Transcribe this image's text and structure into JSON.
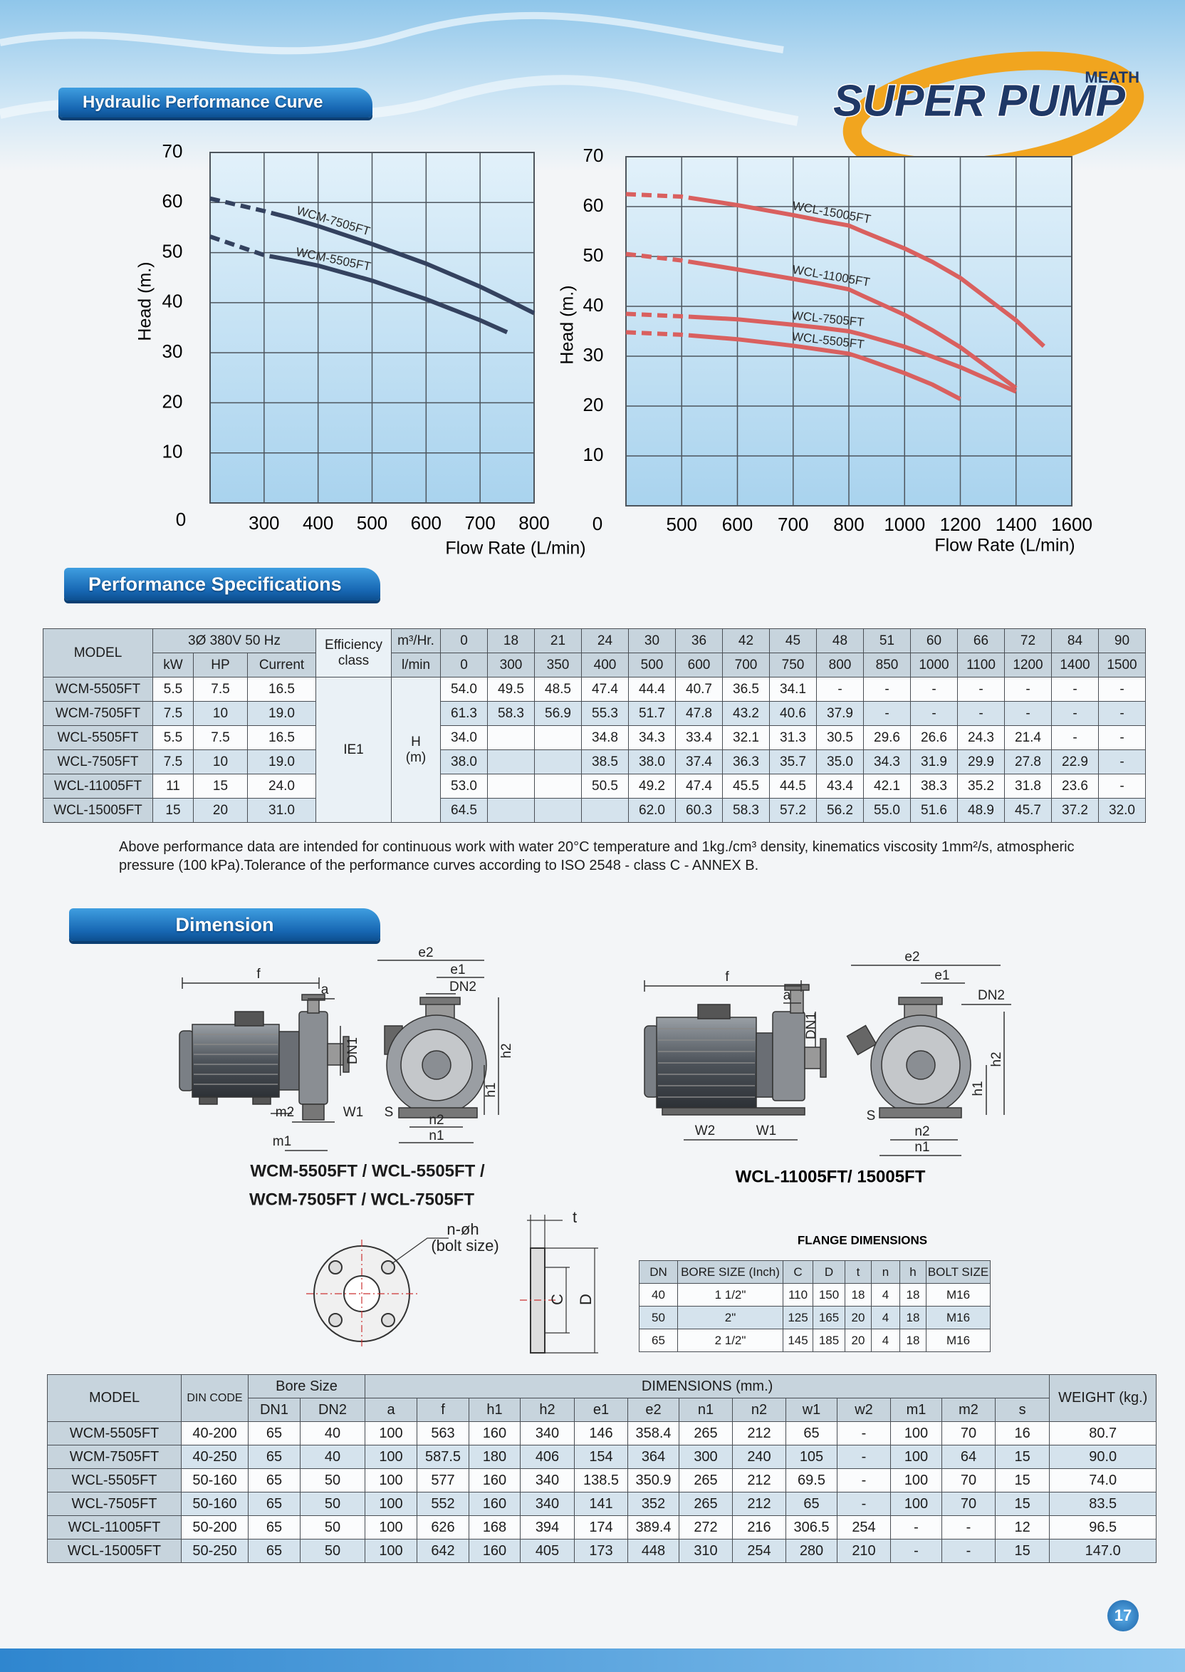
{
  "header": {
    "section_title": "Hydraulic Performance Curve",
    "logo_small": "MEATH",
    "logo": "SUPER PUMP"
  },
  "chart_data": [
    {
      "type": "line",
      "ylabel": "Head (m.)",
      "xlabel": "Flow Rate (L/min)",
      "origin_label": "0",
      "xlim": [
        200,
        800
      ],
      "xticks": [
        300,
        400,
        500,
        600,
        700,
        800
      ],
      "ylim": [
        0,
        70
      ],
      "yticks": [
        10,
        20,
        30,
        40,
        50,
        60,
        70
      ],
      "grid": true,
      "series": [
        {
          "name": "WCM-7505FT",
          "color": "#34425f",
          "x": [
            200,
            300,
            350,
            400,
            500,
            600,
            700,
            750,
            800
          ],
          "values": [
            60.8,
            58.3,
            56.9,
            55.3,
            51.7,
            47.8,
            43.2,
            40.6,
            37.9
          ]
        },
        {
          "name": "WCM-5505FT",
          "color": "#34425f",
          "x": [
            200,
            300,
            350,
            400,
            500,
            600,
            700,
            750
          ],
          "values": [
            53.2,
            49.5,
            48.5,
            47.4,
            44.4,
            40.7,
            36.5,
            34.1
          ]
        }
      ]
    },
    {
      "type": "line",
      "ylabel": "Head (m.)",
      "xlabel": "Flow Rate (L/min)",
      "origin_label": "0",
      "xlim": [
        400,
        1600
      ],
      "xticks": [
        500,
        600,
        700,
        800,
        1000,
        1200,
        1400,
        1600
      ],
      "ylim": [
        0,
        70
      ],
      "yticks": [
        10,
        20,
        30,
        40,
        50,
        60,
        70
      ],
      "grid": true,
      "series": [
        {
          "name": "WCL-15005FT",
          "color": "#d9605f",
          "x": [
            400,
            500,
            600,
            700,
            750,
            800,
            850,
            1000,
            1100,
            1200,
            1400,
            1500
          ],
          "values": [
            62.5,
            62.0,
            60.3,
            58.3,
            57.2,
            56.2,
            55.0,
            51.6,
            48.9,
            45.7,
            37.2,
            32.0
          ]
        },
        {
          "name": "WCL-11005FT",
          "color": "#d9605f",
          "x": [
            400,
            500,
            600,
            700,
            750,
            800,
            850,
            1000,
            1100,
            1200,
            1400
          ],
          "values": [
            50.5,
            49.2,
            47.4,
            45.5,
            44.5,
            43.4,
            42.1,
            38.3,
            35.2,
            31.8,
            23.6
          ]
        },
        {
          "name": "WCL-7505FT",
          "color": "#d9605f",
          "x": [
            400,
            500,
            600,
            700,
            750,
            800,
            850,
            1000,
            1100,
            1200,
            1400
          ],
          "values": [
            38.5,
            38.0,
            37.4,
            36.3,
            35.7,
            35.0,
            34.3,
            31.9,
            29.9,
            27.8,
            22.9
          ]
        },
        {
          "name": "WCL-5505FT",
          "color": "#d9605f",
          "x": [
            400,
            500,
            600,
            700,
            750,
            800,
            850,
            1000,
            1100,
            1200
          ],
          "values": [
            34.8,
            34.3,
            33.4,
            32.1,
            31.3,
            30.5,
            29.6,
            26.6,
            24.3,
            21.4
          ]
        }
      ]
    }
  ],
  "performance": {
    "title": "Performance Specifications",
    "header": {
      "model": "MODEL",
      "power": "3Ø 380V  50 Hz",
      "kw": "kW",
      "hp": "HP",
      "current": "Current",
      "efficiency": "Efficiency\nclass",
      "flow_unit_1": "m³/Hr.",
      "flow_unit_2": "l/min",
      "flows_m3h": [
        0,
        18,
        21,
        24,
        30,
        36,
        42,
        45,
        48,
        51,
        60,
        66,
        72,
        84,
        90
      ],
      "flows_lmin": [
        0,
        300,
        350,
        400,
        500,
        600,
        700,
        750,
        800,
        850,
        1000,
        1100,
        1200,
        1400,
        1500
      ]
    },
    "efficiency_class": "IE1",
    "head_unit": "H\n(m)",
    "rows": [
      {
        "model": "WCM-5505FT",
        "kw": "5.5",
        "hp": "7.5",
        "current": "16.5",
        "head": [
          "54.0",
          "49.5",
          "48.5",
          "47.4",
          "44.4",
          "40.7",
          "36.5",
          "34.1",
          "-",
          "-",
          "-",
          "-",
          "-",
          "-",
          "-"
        ]
      },
      {
        "model": "WCM-7505FT",
        "kw": "7.5",
        "hp": "10",
        "current": "19.0",
        "head": [
          "61.3",
          "58.3",
          "56.9",
          "55.3",
          "51.7",
          "47.8",
          "43.2",
          "40.6",
          "37.9",
          "-",
          "-",
          "-",
          "-",
          "-",
          "-"
        ]
      },
      {
        "model": "WCL-5505FT",
        "kw": "5.5",
        "hp": "7.5",
        "current": "16.5",
        "head": [
          "34.0",
          null,
          null,
          "34.8",
          "34.3",
          "33.4",
          "32.1",
          "31.3",
          "30.5",
          "29.6",
          "26.6",
          "24.3",
          "21.4",
          "-",
          "-"
        ]
      },
      {
        "model": "WCL-7505FT",
        "kw": "7.5",
        "hp": "10",
        "current": "19.0",
        "head": [
          "38.0",
          null,
          null,
          "38.5",
          "38.0",
          "37.4",
          "36.3",
          "35.7",
          "35.0",
          "34.3",
          "31.9",
          "29.9",
          "27.8",
          "22.9",
          "-"
        ]
      },
      {
        "model": "WCL-11005FT",
        "kw": "11",
        "hp": "15",
        "current": "24.0",
        "head": [
          "53.0",
          null,
          null,
          "50.5",
          "49.2",
          "47.4",
          "45.5",
          "44.5",
          "43.4",
          "42.1",
          "38.3",
          "35.2",
          "31.8",
          "23.6",
          "-"
        ]
      },
      {
        "model": "WCL-15005FT",
        "kw": "15",
        "hp": "20",
        "current": "31.0",
        "head": [
          "64.5",
          null,
          null,
          null,
          "62.0",
          "60.3",
          "58.3",
          "57.2",
          "56.2",
          "55.0",
          "51.6",
          "48.9",
          "45.7",
          "37.2",
          "32.0"
        ]
      }
    ],
    "note": "Above performance data are intended for continuous work with water 20°C temperature and 1kg./cm³ density, kinematics viscosity 1mm²/s, atmospheric pressure (100 kPa).Tolerance of the performance curves according to ISO 2548 - class C - ANNEX B."
  },
  "dimension": {
    "title": "Dimension",
    "drawing_a": {
      "labels": [
        "f",
        "a",
        "DN1",
        "m2",
        "W1",
        "m1",
        "e2",
        "e1",
        "DN2",
        "h2",
        "h1",
        "S",
        "n2",
        "n1"
      ],
      "caption": [
        "WCM-5505FT / WCL-5505FT /",
        "WCM-7505FT / WCL-7505FT"
      ]
    },
    "drawing_b": {
      "labels": [
        "f",
        "a",
        "DN1",
        "W2",
        "W1",
        "e2",
        "e1",
        "DN2",
        "h2",
        "h1",
        "S",
        "n2",
        "n1"
      ],
      "caption": "WCL-11005FT/ 15005FT"
    },
    "flange_drawing": {
      "labels": [
        "n-øh",
        "(bolt size)",
        "t",
        "C",
        "D"
      ]
    },
    "flange_table": {
      "title": "FLANGE DIMENSIONS",
      "header": [
        "DN",
        "BORE SIZE (Inch)",
        "C",
        "D",
        "t",
        "n",
        "h",
        "BOLT SIZE"
      ],
      "rows": [
        [
          "40",
          "1 1/2\"",
          "110",
          "150",
          "18",
          "4",
          "18",
          "M16"
        ],
        [
          "50",
          "2\"",
          "125",
          "165",
          "20",
          "4",
          "18",
          "M16"
        ],
        [
          "65",
          "2 1/2\"",
          "145",
          "185",
          "20",
          "4",
          "18",
          "M16"
        ]
      ]
    },
    "table": {
      "header": {
        "model": "MODEL",
        "din": "DIN CODE",
        "bore": "Bore Size",
        "dims": "DIMENSIONS (mm.)",
        "weight": "WEIGHT (kg.)",
        "columns": [
          "DN1",
          "DN2",
          "a",
          "f",
          "h1",
          "h2",
          "e1",
          "e2",
          "n1",
          "n2",
          "w1",
          "w2",
          "m1",
          "m2",
          "s"
        ]
      },
      "rows": [
        [
          "WCM-5505FT",
          "40-200",
          "65",
          "40",
          "100",
          "563",
          "160",
          "340",
          "146",
          "358.4",
          "265",
          "212",
          "65",
          "-",
          "100",
          "70",
          "16",
          "80.7"
        ],
        [
          "WCM-7505FT",
          "40-250",
          "65",
          "40",
          "100",
          "587.5",
          "180",
          "406",
          "154",
          "364",
          "300",
          "240",
          "105",
          "-",
          "100",
          "64",
          "15",
          "90.0"
        ],
        [
          "WCL-5505FT",
          "50-160",
          "65",
          "50",
          "100",
          "577",
          "160",
          "340",
          "138.5",
          "350.9",
          "265",
          "212",
          "69.5",
          "-",
          "100",
          "70",
          "15",
          "74.0"
        ],
        [
          "WCL-7505FT",
          "50-160",
          "65",
          "50",
          "100",
          "552",
          "160",
          "340",
          "141",
          "352",
          "265",
          "212",
          "65",
          "-",
          "100",
          "70",
          "15",
          "83.5"
        ],
        [
          "WCL-11005FT",
          "50-200",
          "65",
          "50",
          "100",
          "626",
          "168",
          "394",
          "174",
          "389.4",
          "272",
          "216",
          "306.5",
          "254",
          "-",
          "-",
          "12",
          "96.5"
        ],
        [
          "WCL-15005FT",
          "50-250",
          "65",
          "50",
          "100",
          "642",
          "160",
          "405",
          "173",
          "448",
          "310",
          "254",
          "280",
          "210",
          "-",
          "-",
          "15",
          "147.0"
        ]
      ]
    }
  },
  "page_number": "17"
}
